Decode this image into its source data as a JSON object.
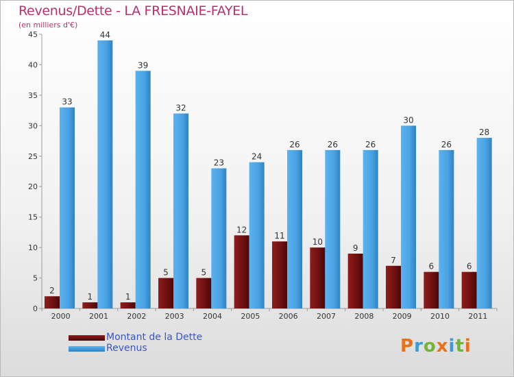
{
  "title": "Revenus/Dette - LA FRESNAIE-FAYEL",
  "subtitle": "(en milliers d'€)",
  "logo": {
    "text": "Proxiti",
    "colors": [
      "#e8711c",
      "#3c9bd6",
      "#6fb536",
      "#e8711c",
      "#3c9bd6",
      "#6fb536",
      "#e8711c"
    ]
  },
  "colors": {
    "dette": "#7a1414",
    "revenus": "#4da6e6",
    "title": "#b3326e",
    "legend_text": "#3a55c8"
  },
  "chart_data": {
    "type": "bar",
    "title": "Revenus/Dette - LA FRESNAIE-FAYEL",
    "subtitle": "(en milliers d'€)",
    "categories": [
      "2000",
      "2001",
      "2002",
      "2003",
      "2004",
      "2005",
      "2006",
      "2007",
      "2008",
      "2009",
      "2010",
      "2011"
    ],
    "series": [
      {
        "name": "Montant de la Dette",
        "color": "#7a1414",
        "values": [
          2,
          1,
          1,
          5,
          5,
          12,
          11,
          10,
          9,
          7,
          6,
          6
        ]
      },
      {
        "name": "Revenus",
        "color": "#4da6e6",
        "values": [
          33,
          44,
          39,
          32,
          23,
          24,
          26,
          26,
          26,
          30,
          26,
          28
        ]
      }
    ],
    "ylim": [
      0,
      45
    ],
    "yticks": [
      0,
      5,
      10,
      15,
      20,
      25,
      30,
      35,
      40,
      45
    ],
    "grid": false,
    "legend_position": "bottom-left"
  }
}
